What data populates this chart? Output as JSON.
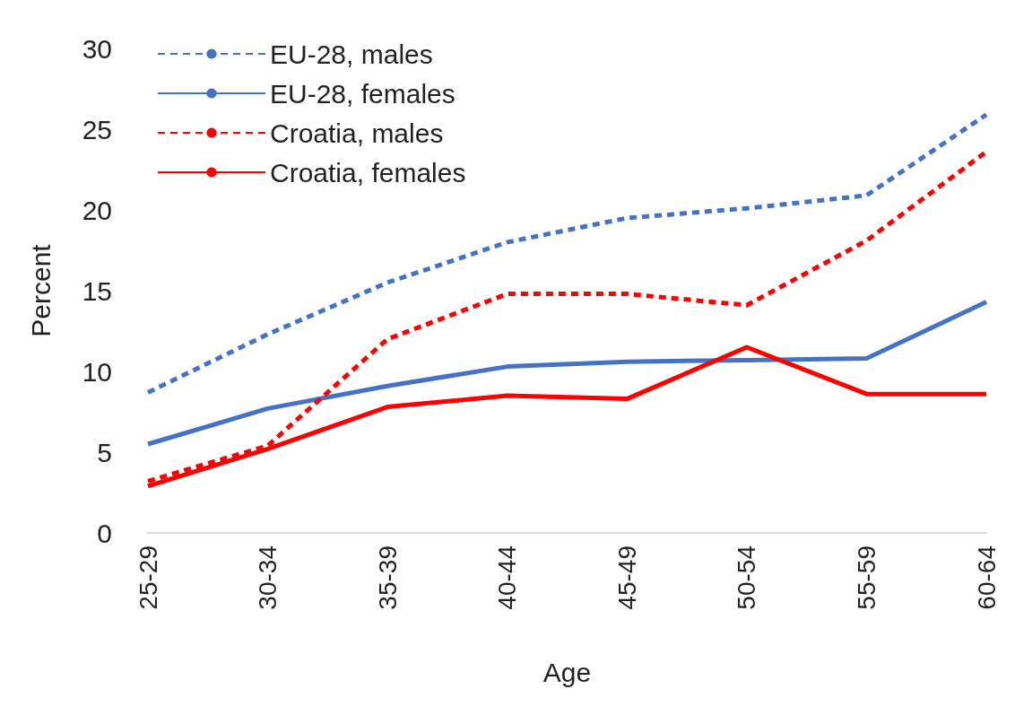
{
  "chart_data": {
    "type": "line",
    "xlabel": "Age",
    "ylabel": "Percent",
    "categories": [
      "25-29",
      "30-34",
      "35-39",
      "40-44",
      "45-49",
      "50-54",
      "55-59",
      "60-64"
    ],
    "series": [
      {
        "name": "EU-28, males",
        "color": "#4472c4",
        "line_style": "dashed",
        "values": [
          8.7,
          12.3,
          15.5,
          18.0,
          19.5,
          20.1,
          20.9,
          25.9
        ]
      },
      {
        "name": "EU-28, females",
        "color": "#4472c4",
        "line_style": "solid",
        "values": [
          5.5,
          7.7,
          9.1,
          10.3,
          10.6,
          10.7,
          10.8,
          14.3
        ]
      },
      {
        "name": "Croatia, males",
        "color": "#ff0000",
        "line_style": "dashed",
        "values": [
          3.2,
          5.4,
          12.0,
          14.8,
          14.8,
          14.1,
          18.1,
          23.6
        ]
      },
      {
        "name": "Croatia, females",
        "color": "#ff0000",
        "line_style": "solid",
        "values": [
          2.9,
          5.2,
          7.8,
          8.5,
          8.3,
          11.5,
          8.6,
          8.6
        ]
      }
    ],
    "ylim": [
      0,
      30
    ],
    "yticks": [
      0,
      5,
      10,
      15,
      20,
      25,
      30
    ],
    "grid": false,
    "legend": "top left",
    "marker": "none"
  }
}
